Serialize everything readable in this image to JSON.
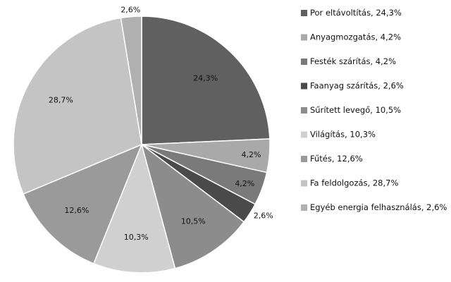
{
  "chart_data": {
    "type": "pie",
    "title": "",
    "legend_position": "right",
    "start": "top",
    "direction": "clockwise",
    "slices": [
      {
        "label": "Por eltávoltítás",
        "value": 24.3,
        "value_label": "24,3%",
        "legend_label": "Por eltávoltítás, 24,3%",
        "color": "#606060"
      },
      {
        "label": "Anyagmozgatás",
        "value": 4.2,
        "value_label": "4,2%",
        "legend_label": "Anyagmozgatás, 4,2%",
        "color": "#a9a9a9"
      },
      {
        "label": "Festék szárítás",
        "value": 4.2,
        "value_label": "4,2%",
        "legend_label": "Festék szárítás, 4,2%",
        "color": "#7a7a7a"
      },
      {
        "label": "Faanyag szárítás",
        "value": 2.6,
        "value_label": "2,6%",
        "legend_label": "Faanyag szárítás, 2,6%",
        "color": "#4a4a4a"
      },
      {
        "label": "Sűrített levegő",
        "value": 10.5,
        "value_label": "10,5%",
        "legend_label": "Sűrített levegő, 10,5%",
        "color": "#8c8c8c"
      },
      {
        "label": "Világítás",
        "value": 10.3,
        "value_label": "10,3%",
        "legend_label": "Világítás, 10,3%",
        "color": "#d0d0d0"
      },
      {
        "label": "Fűtés",
        "value": 12.6,
        "value_label": "12,6%",
        "legend_label": "Fűtés, 12,6%",
        "color": "#9a9a9a"
      },
      {
        "label": "Fa feldolgozás",
        "value": 28.7,
        "value_label": "28,7%",
        "legend_label": "Fa feldolgozás, 28,7%",
        "color": "#c4c4c4"
      },
      {
        "label": "Egyéb energia felhasználás",
        "value": 2.6,
        "value_label": "2,6%",
        "legend_label": "Egyéb energia felhasználás, 2,6%",
        "color": "#b0b0b0"
      }
    ]
  }
}
